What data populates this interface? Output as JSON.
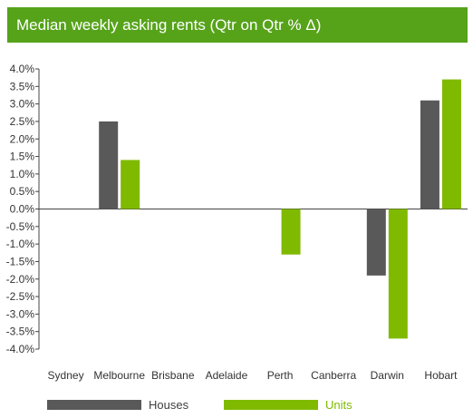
{
  "header": {
    "title": "Median weekly asking rents  (Qtr on Qtr % Δ)"
  },
  "colors": {
    "header_bg": "#56a31a",
    "houses": "#595959",
    "units": "#7fba00",
    "axis": "#444444"
  },
  "chart_data": {
    "type": "bar",
    "title": "Median weekly asking rents  (Qtr on Qtr % Δ)",
    "categories": [
      "Sydney",
      "Melbourne",
      "Brisbane",
      "Adelaide",
      "Perth",
      "Canberra",
      "Darwin",
      "Hobart"
    ],
    "series": [
      {
        "name": "Houses",
        "values": [
          0,
          2.5,
          0,
          0,
          0,
          0,
          -1.9,
          3.1
        ]
      },
      {
        "name": "Units",
        "values": [
          0,
          1.4,
          0,
          0,
          -1.3,
          0,
          -3.7,
          3.7
        ]
      }
    ],
    "yticks": [
      "4.0%",
      "3.5%",
      "3.0%",
      "2.5%",
      "2.0%",
      "1.5%",
      "1.0%",
      "0.5%",
      "0.0%",
      "-0.5%",
      "-1.0%",
      "-1.5%",
      "-2.0%",
      "-2.5%",
      "-3.0%",
      "-3.5%",
      "-4.0%"
    ],
    "ylim": [
      -4,
      4
    ],
    "grid": false,
    "legend_position": "bottom"
  },
  "legend": {
    "houses_label": "Houses",
    "units_label": "Units"
  }
}
